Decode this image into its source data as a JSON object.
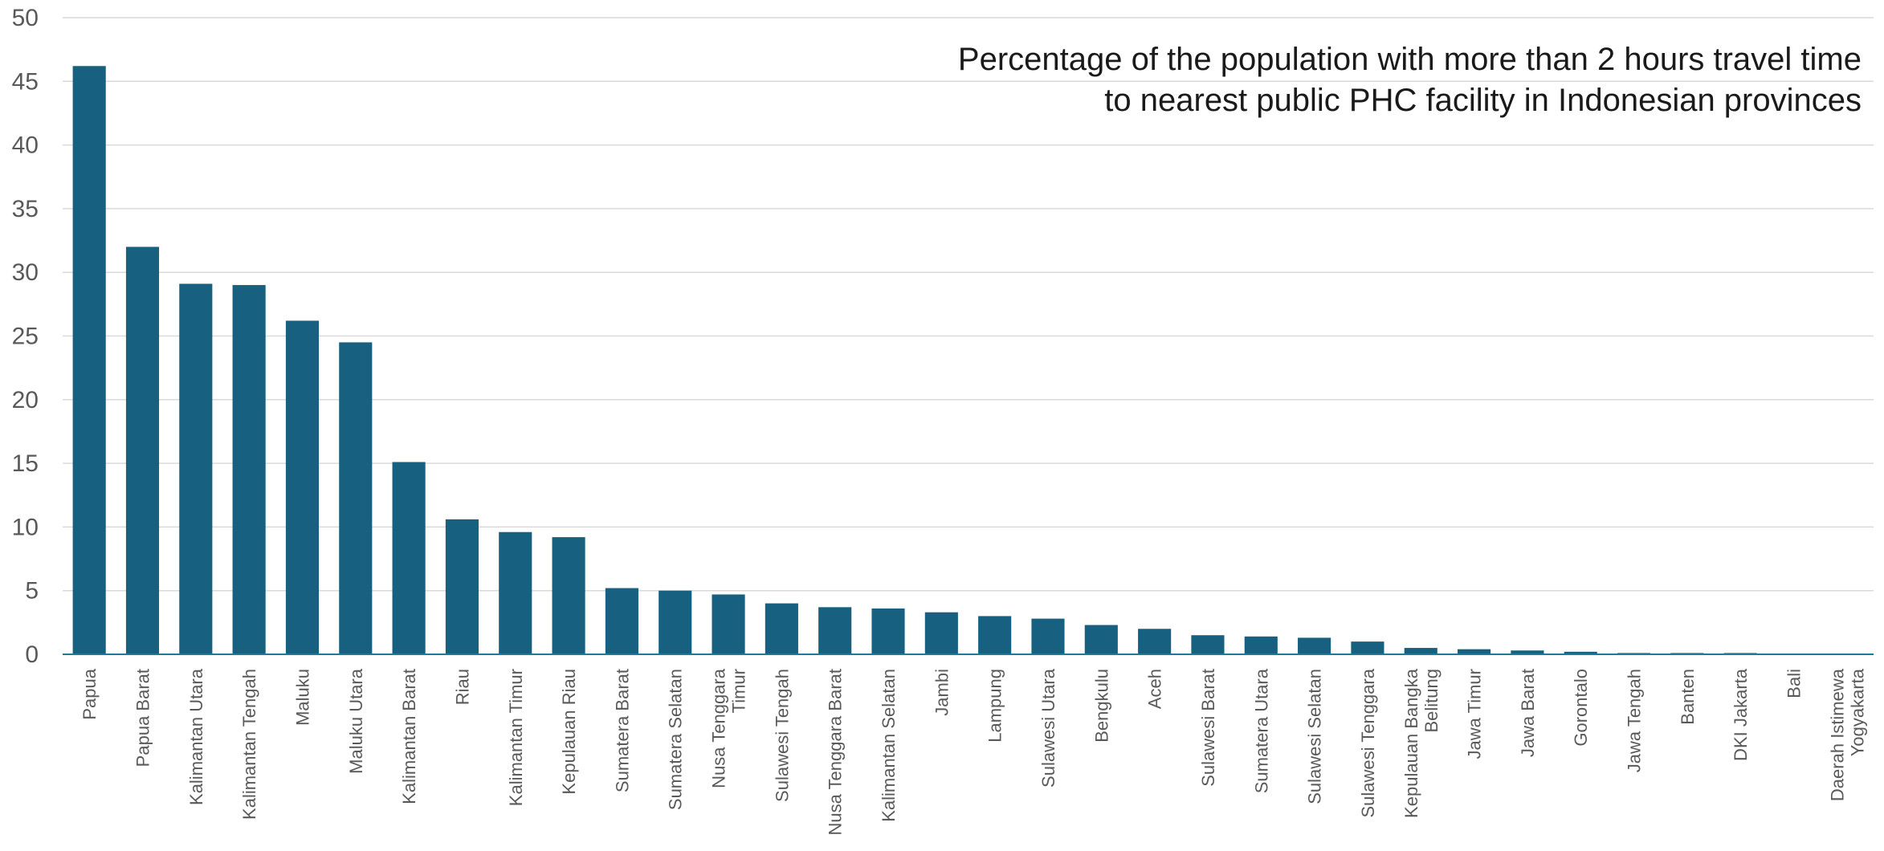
{
  "chart_data": {
    "type": "bar",
    "title_lines": [
      "Percentage of the population with more than 2 hours travel time",
      "to nearest public PHC facility in Indonesian provinces"
    ],
    "xlabel": "",
    "ylabel": "",
    "ylim": [
      0,
      50
    ],
    "yticks": [
      0,
      5,
      10,
      15,
      20,
      25,
      30,
      35,
      40,
      45,
      50
    ],
    "grid": true,
    "legend": "none",
    "bar_color": "#17607f",
    "categories": [
      "Papua",
      "Papua Barat",
      "Kalimantan Utara",
      "Kalimantan Tengah",
      "Maluku",
      "Maluku Utara",
      "Kalimantan Barat",
      "Riau",
      "Kalimantan Timur",
      "Kepulauan Riau",
      "Sumatera Barat",
      "Sumatera Selatan",
      "Nusa Tenggara Timur",
      "Sulawesi Tengah",
      "Nusa Tenggara Barat",
      "Kalimantan Selatan",
      "Jambi",
      "Lampung",
      "Sulawesi Utara",
      "Bengkulu",
      "Aceh",
      "Sulawesi Barat",
      "Sumatera Utara",
      "Sulawesi Selatan",
      "Sulawesi Tenggara",
      "Kepulauan Bangka Belitung",
      "Jawa Timur",
      "Jawa Barat",
      "Gorontalo",
      "Jawa Tengah",
      "Banten",
      "DKI Jakarta",
      "Bali",
      "Daerah Istimewa Yogyakarta"
    ],
    "category_label_lines": [
      [
        "Papua"
      ],
      [
        "Papua Barat"
      ],
      [
        "Kalimantan Utara"
      ],
      [
        "Kalimantan Tengah"
      ],
      [
        "Maluku"
      ],
      [
        "Maluku Utara"
      ],
      [
        "Kalimantan Barat"
      ],
      [
        "Riau"
      ],
      [
        "Kalimantan Timur"
      ],
      [
        "Kepulauan Riau"
      ],
      [
        "Sumatera Barat"
      ],
      [
        "Sumatera Selatan"
      ],
      [
        "Nusa Tenggara",
        "Timur"
      ],
      [
        "Sulawesi Tengah"
      ],
      [
        "Nusa Tenggara Barat"
      ],
      [
        "Kalimantan Selatan"
      ],
      [
        "Jambi"
      ],
      [
        "Lampung"
      ],
      [
        "Sulawesi Utara"
      ],
      [
        "Bengkulu"
      ],
      [
        "Aceh"
      ],
      [
        "Sulawesi Barat"
      ],
      [
        "Sumatera Utara"
      ],
      [
        "Sulawesi Selatan"
      ],
      [
        "Sulawesi Tenggara"
      ],
      [
        "Kepulauan Bangka",
        "Belitung"
      ],
      [
        "Jawa Timur"
      ],
      [
        "Jawa Barat"
      ],
      [
        "Gorontalo"
      ],
      [
        "Jawa Tengah"
      ],
      [
        "Banten"
      ],
      [
        "DKI Jakarta"
      ],
      [
        "Bali"
      ],
      [
        "Daerah Istimewa",
        "Yogyakarta"
      ]
    ],
    "values": [
      46.2,
      32.0,
      29.1,
      29.0,
      26.2,
      24.5,
      15.1,
      10.6,
      9.6,
      9.2,
      5.2,
      5.0,
      4.7,
      4.0,
      3.7,
      3.6,
      3.3,
      3.0,
      2.8,
      2.3,
      2.0,
      1.5,
      1.4,
      1.3,
      1.0,
      0.5,
      0.4,
      0.3,
      0.2,
      0.1,
      0.1,
      0.1,
      0.05,
      0.02
    ]
  }
}
